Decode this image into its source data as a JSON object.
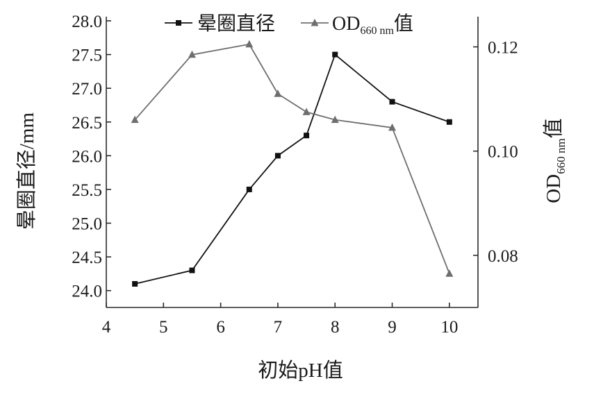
{
  "chart_data": {
    "type": "line",
    "x": [
      4.5,
      5.5,
      6.5,
      7,
      7.5,
      8,
      9,
      10
    ],
    "xlabel": "初始pH值",
    "xlim": [
      4,
      10.5
    ],
    "xticks": [
      "4",
      "5",
      "6",
      "7",
      "8",
      "9",
      "10"
    ],
    "ylabel_left": "晕圈直径/mm",
    "ylim_left": [
      23.75,
      28.0
    ],
    "yticks_left": [
      "24.0",
      "24.5",
      "25.0",
      "25.5",
      "26.0",
      "26.5",
      "27.0",
      "27.5",
      "28.0"
    ],
    "ylabel_right": {
      "main": "OD",
      "sub": "660 nm",
      "suffix": "值"
    },
    "ylim_right": [
      0.07,
      0.125
    ],
    "yticks_right": [
      "0.08",
      "0.10",
      "0.12"
    ],
    "series": [
      {
        "name": "晕圈直径",
        "axis": "left",
        "marker": "square",
        "color": "#111111",
        "values": [
          24.1,
          24.3,
          25.5,
          26.0,
          26.3,
          27.5,
          26.8,
          26.5
        ]
      },
      {
        "name": "OD660 nm值",
        "legend": {
          "main": "OD",
          "sub": "660 nm",
          "suffix": "值"
        },
        "axis": "right",
        "marker": "triangle",
        "color": "#6e6e6e",
        "values": [
          0.106,
          0.1185,
          0.1205,
          0.111,
          0.1075,
          0.106,
          0.1045,
          0.0765
        ]
      }
    ],
    "legend_position": "top-center",
    "grid": false
  }
}
